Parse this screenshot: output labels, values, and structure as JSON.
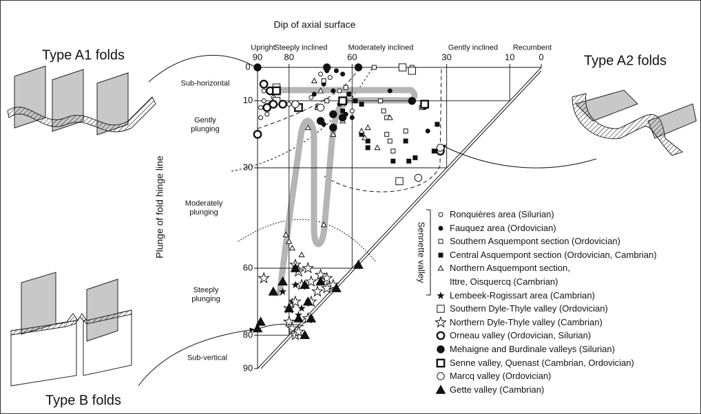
{
  "chart_data": {
    "type": "scatter",
    "x_label": "Dip of axial surface",
    "y_label": "Plunge of fold hinge line",
    "xlim": [
      90,
      0
    ],
    "xticks": [
      90,
      80,
      60,
      30,
      10,
      0
    ],
    "ylim": [
      0,
      90
    ],
    "yticks": [
      0,
      10,
      30,
      60,
      80,
      90
    ],
    "grid": true,
    "dip_zones": [
      "Upright",
      "Steeply inclined",
      "Moderately inclined",
      "Gently inclined",
      "Recumbent"
    ],
    "plunge_zones": [
      "Sub-horizontal",
      "Gently\nplunging",
      "Moderately\nplunging",
      "Steeply\nplunging",
      "Sub-vertical"
    ],
    "fold_types": [
      "Type A1 folds",
      "Type A2 folds",
      "Type B folds"
    ],
    "group_label": "Sennette valley",
    "series": [
      {
        "name": "Ronquières area (Silurian)",
        "marker": "circle",
        "size": "small",
        "filled": false,
        "bold": false,
        "x": [
          88,
          89,
          87,
          86,
          88,
          89,
          85,
          80,
          73,
          70,
          67,
          64,
          62,
          60
        ],
        "values": [
          10,
          12,
          14,
          11,
          7,
          15,
          9,
          11,
          9,
          2,
          3,
          7,
          10,
          13
        ]
      },
      {
        "name": "Fauquez area (Ordovician)",
        "marker": "circle",
        "size": "small",
        "filled": true,
        "bold": false,
        "x": [
          68,
          65,
          63,
          66,
          69,
          72,
          71,
          69,
          64,
          62,
          60,
          48,
          37,
          33,
          36
        ],
        "values": [
          1,
          1,
          2,
          7,
          5,
          8,
          12,
          17,
          11,
          14,
          15,
          7,
          12,
          17,
          19
        ]
      },
      {
        "name": "Southern Asquempont section (Ordovician)",
        "marker": "square",
        "size": "small",
        "filled": false,
        "bold": false,
        "x": [
          53,
          41,
          69,
          68,
          62,
          51,
          50,
          49,
          49,
          48,
          47,
          38,
          43
        ],
        "values": [
          0,
          0,
          4,
          10,
          6,
          10,
          13,
          15,
          20,
          22,
          25,
          12,
          19
        ]
      },
      {
        "name": "Central Asquempont section (Ordovician, Cambrian)",
        "marker": "square",
        "size": "small",
        "filled": true,
        "bold": false,
        "x": [
          63,
          61,
          59,
          57,
          55,
          55,
          57,
          47,
          42,
          40,
          43,
          33,
          34
        ],
        "values": [
          13,
          8,
          10,
          11,
          22,
          24,
          20,
          28,
          28,
          27,
          22,
          17,
          25
        ]
      },
      {
        "name": "Northern Asquempont section,\nIttre, Oisquercq (Cambrian)",
        "marker": "triangle",
        "size": "small",
        "filled": false,
        "bold": false,
        "x": [
          72,
          70,
          71,
          74,
          66,
          63,
          55,
          56,
          52,
          57,
          48,
          69,
          81,
          80,
          79,
          76
        ],
        "values": [
          4,
          7,
          12,
          18,
          20,
          16,
          18,
          21,
          24,
          19,
          15,
          47,
          50,
          52,
          54,
          56
        ]
      },
      {
        "name": "Lembeek-Rogissart area (Cambrian)",
        "marker": "star",
        "size": "small",
        "filled": true,
        "bold": false,
        "x": [
          82,
          79,
          77,
          80,
          76,
          78
        ],
        "values": [
          67,
          70,
          74,
          76,
          72,
          65
        ]
      },
      {
        "name": "Southern Dyle-Thyle valley (Ordovician)",
        "marker": "square",
        "size": "large",
        "filled": false,
        "bold": false,
        "x": [
          84,
          84,
          44,
          41,
          45
        ],
        "values": [
          6,
          10,
          0,
          1,
          34
        ]
      },
      {
        "name": "Northern Dyle-Thyle valley (Cambrian)",
        "marker": "star",
        "size": "large",
        "filled": false,
        "bold": false,
        "x": [
          88,
          78,
          77,
          74,
          70,
          68,
          68,
          66,
          71,
          73,
          76,
          73,
          74,
          78,
          80,
          80,
          79,
          78,
          77
        ],
        "values": [
          63,
          59,
          61,
          60,
          62,
          63,
          66,
          65,
          67,
          64,
          65,
          70,
          75,
          70,
          72,
          76,
          78,
          80,
          79
        ]
      },
      {
        "name": "Orneau valley (Ordovician, Silurian)",
        "marker": "circle",
        "size": "large",
        "filled": false,
        "bold": true,
        "x": [
          90,
          88,
          86,
          85,
          87,
          82,
          32
        ],
        "values": [
          20,
          5,
          7,
          11,
          12,
          11,
          25
        ]
      },
      {
        "name": "Mehaigne and Burdinale valleys (Silurian)",
        "marker": "circle",
        "size": "large",
        "filled": true,
        "bold": false,
        "x": [
          90,
          68,
          70,
          66,
          66,
          63,
          58,
          41
        ],
        "values": [
          0,
          0,
          16,
          18,
          14,
          15,
          0,
          10
        ]
      },
      {
        "name": "Senne valley, Quenast (Cambrian, Ordovician)",
        "marker": "square",
        "size": "large",
        "filled": false,
        "bold": true,
        "x": [
          84,
          77,
          63,
          37
        ],
        "values": [
          7,
          12,
          10,
          11
        ]
      },
      {
        "name": "Marcq valley (Ordovician)",
        "marker": "circle",
        "size": "large",
        "filled": false,
        "bold": false,
        "x": [
          78,
          70,
          39,
          32
        ],
        "values": [
          11,
          12,
          33,
          24
        ]
      },
      {
        "name": "Gette valley (Cambrian)",
        "marker": "triangle",
        "size": "large",
        "filled": true,
        "bold": false,
        "x": [
          90,
          89,
          85,
          82,
          80,
          78,
          75,
          74,
          73,
          70,
          65,
          58,
          77,
          75
        ],
        "values": [
          78,
          76,
          67,
          64,
          72,
          60,
          65,
          70,
          75,
          64,
          66,
          59,
          75,
          80
        ]
      }
    ]
  }
}
